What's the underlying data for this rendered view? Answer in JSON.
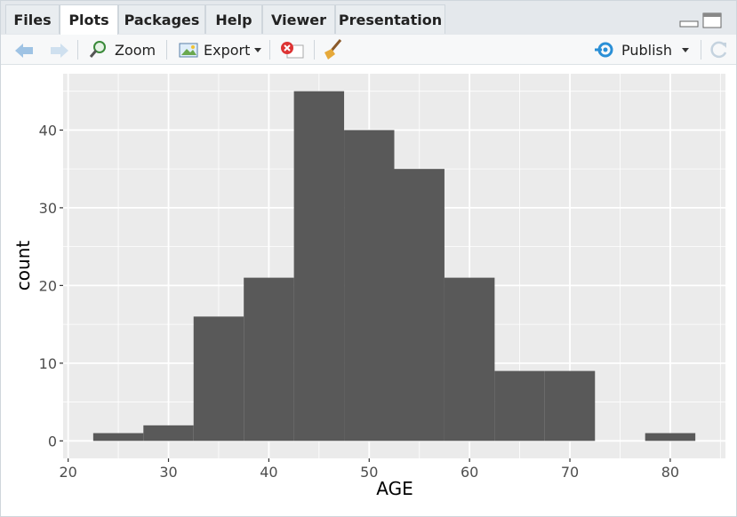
{
  "tabs": [
    "Files",
    "Plots",
    "Packages",
    "Help",
    "Viewer",
    "Presentation"
  ],
  "toolbar": {
    "zoom": "Zoom",
    "export": "Export",
    "publish": "Publish"
  },
  "chart_data": {
    "type": "histogram",
    "x_label": "AGE",
    "y_label": "count",
    "bins": [
      22.5,
      27.5,
      32.5,
      37.5,
      42.5,
      47.5,
      52.5,
      57.5,
      62.5,
      67.5,
      72.5,
      77.5,
      82.5
    ],
    "values": [
      1,
      2,
      16,
      21,
      45,
      40,
      35,
      21,
      9,
      9,
      0,
      1
    ],
    "color": "#595959",
    "xlim": [
      19.5,
      85.5
    ],
    "xticks": [
      20,
      30,
      40,
      50,
      60,
      70,
      80
    ],
    "xminor": [
      25,
      35,
      45,
      55,
      65,
      75,
      85
    ],
    "ylim": [
      -2.25,
      47.25
    ],
    "yticks": [
      0,
      10,
      20,
      30,
      40
    ],
    "yminor": [
      5,
      15,
      25,
      35,
      45
    ],
    "grid": true
  }
}
